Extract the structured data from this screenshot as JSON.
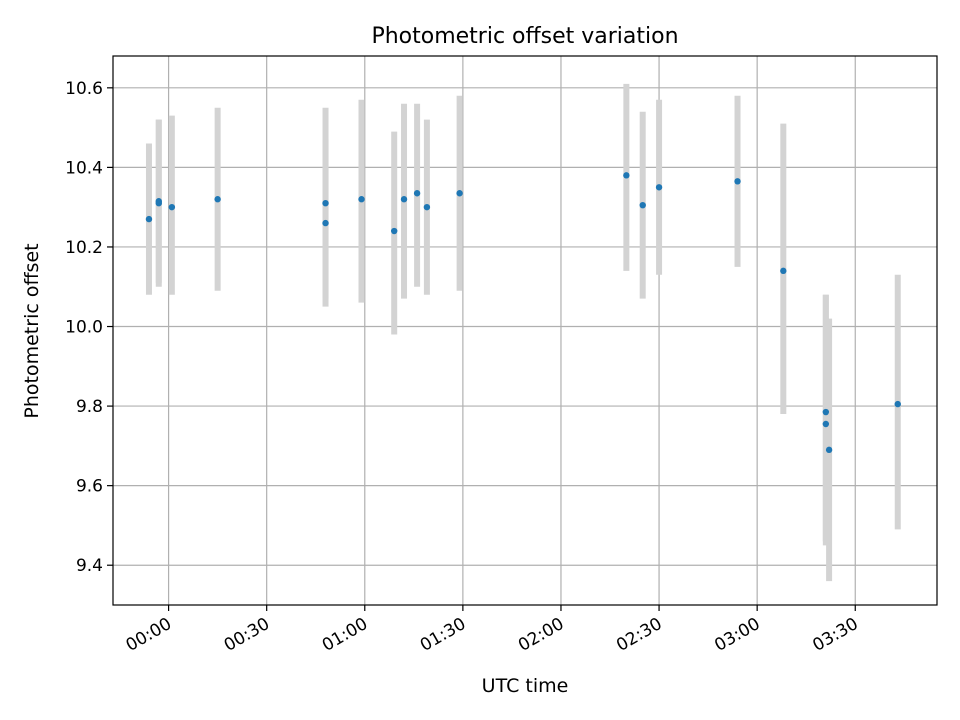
{
  "chart_data": {
    "type": "scatter",
    "title": "Photometric offset variation",
    "xlabel": "UTC time",
    "ylabel": "Photometric offset",
    "grid": true,
    "legend": "none",
    "x_unit": "UTC time of day (HH:MM)",
    "xlim": [
      "23:43",
      "03:55"
    ],
    "ylim": [
      9.3,
      10.68
    ],
    "x_ticks": [
      "00:00",
      "00:30",
      "01:00",
      "01:30",
      "02:00",
      "02:30",
      "03:00",
      "03:30"
    ],
    "y_ticks": [
      "9.4",
      "9.6",
      "9.8",
      "10.0",
      "10.2",
      "10.4",
      "10.6"
    ],
    "colors": {
      "point": "#1f77b4",
      "errorbar": "#d3d3d3",
      "grid": "#b0b0b0"
    },
    "series": [
      {
        "points": [
          {
            "x": "23:54",
            "y": 10.27,
            "ylo": 10.08,
            "yhi": 10.46
          },
          {
            "x": "23:57",
            "y": 10.31,
            "ylo": 10.1,
            "yhi": 10.52
          },
          {
            "x": "23:57",
            "y": 10.315,
            "ylo": 10.11,
            "yhi": 10.52
          },
          {
            "x": "00:01",
            "y": 10.3,
            "ylo": 10.08,
            "yhi": 10.53
          },
          {
            "x": "00:15",
            "y": 10.32,
            "ylo": 10.09,
            "yhi": 10.55
          },
          {
            "x": "00:48",
            "y": 10.26,
            "ylo": 10.05,
            "yhi": 10.47
          },
          {
            "x": "00:48",
            "y": 10.31,
            "ylo": 10.07,
            "yhi": 10.55
          },
          {
            "x": "00:59",
            "y": 10.32,
            "ylo": 10.06,
            "yhi": 10.57
          },
          {
            "x": "01:09",
            "y": 10.24,
            "ylo": 9.98,
            "yhi": 10.49
          },
          {
            "x": "01:12",
            "y": 10.32,
            "ylo": 10.07,
            "yhi": 10.56
          },
          {
            "x": "01:16",
            "y": 10.335,
            "ylo": 10.1,
            "yhi": 10.56
          },
          {
            "x": "01:19",
            "y": 10.3,
            "ylo": 10.08,
            "yhi": 10.52
          },
          {
            "x": "01:29",
            "y": 10.335,
            "ylo": 10.09,
            "yhi": 10.58
          },
          {
            "x": "02:20",
            "y": 10.38,
            "ylo": 10.14,
            "yhi": 10.61
          },
          {
            "x": "02:25",
            "y": 10.305,
            "ylo": 10.07,
            "yhi": 10.54
          },
          {
            "x": "02:30",
            "y": 10.35,
            "ylo": 10.13,
            "yhi": 10.57
          },
          {
            "x": "02:54",
            "y": 10.365,
            "ylo": 10.15,
            "yhi": 10.58
          },
          {
            "x": "03:08",
            "y": 10.14,
            "ylo": 9.78,
            "yhi": 10.51
          },
          {
            "x": "03:21",
            "y": 9.755,
            "ylo": 9.45,
            "yhi": 10.08
          },
          {
            "x": "03:21",
            "y": 9.785,
            "ylo": 9.46,
            "yhi": 10.08
          },
          {
            "x": "03:22",
            "y": 9.69,
            "ylo": 9.36,
            "yhi": 10.02
          },
          {
            "x": "03:43",
            "y": 9.805,
            "ylo": 9.49,
            "yhi": 10.13
          }
        ]
      }
    ]
  }
}
